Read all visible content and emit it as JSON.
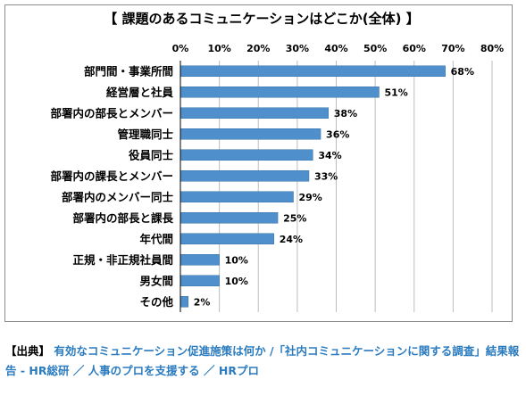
{
  "chart_data": {
    "type": "bar",
    "orientation": "horizontal",
    "title": "【 課題のあるコミュニケーションはどこか(全体) 】",
    "categories": [
      "部門間・事業所間",
      "経営層と社員",
      "部署内の部長とメンバー",
      "管理職同士",
      "役員同士",
      "部署内の課長とメンバー",
      "部署内のメンバー同士",
      "部署内の部長と課長",
      "年代間",
      "正規・非正規社員間",
      "男女間",
      "その他"
    ],
    "values": [
      68,
      51,
      38,
      36,
      34,
      33,
      29,
      25,
      24,
      10,
      10,
      2
    ],
    "value_labels": [
      "68%",
      "51%",
      "38%",
      "36%",
      "34%",
      "33%",
      "29%",
      "25%",
      "24%",
      "10%",
      "10%",
      "2%"
    ],
    "xlim": [
      0,
      80
    ],
    "xticks": [
      0,
      10,
      20,
      30,
      40,
      50,
      60,
      70,
      80
    ],
    "xtick_labels": [
      "0%",
      "10%",
      "20%",
      "30%",
      "40%",
      "50%",
      "60%",
      "70%",
      "80%"
    ],
    "x_axis_position": "top",
    "grid": true,
    "legend": "none",
    "bar_color": "#4f8fcc",
    "bar_edge_color": "#3a73a8"
  },
  "source": {
    "tag": "【出典】",
    "text": "有効なコミュニケーション促進施策は何か /「社内コミュニケーションに関する調査」結果報告 - HR総研 ／ 人事のプロを支援する ／ HRプロ",
    "link_color": "#2b7bbf"
  }
}
